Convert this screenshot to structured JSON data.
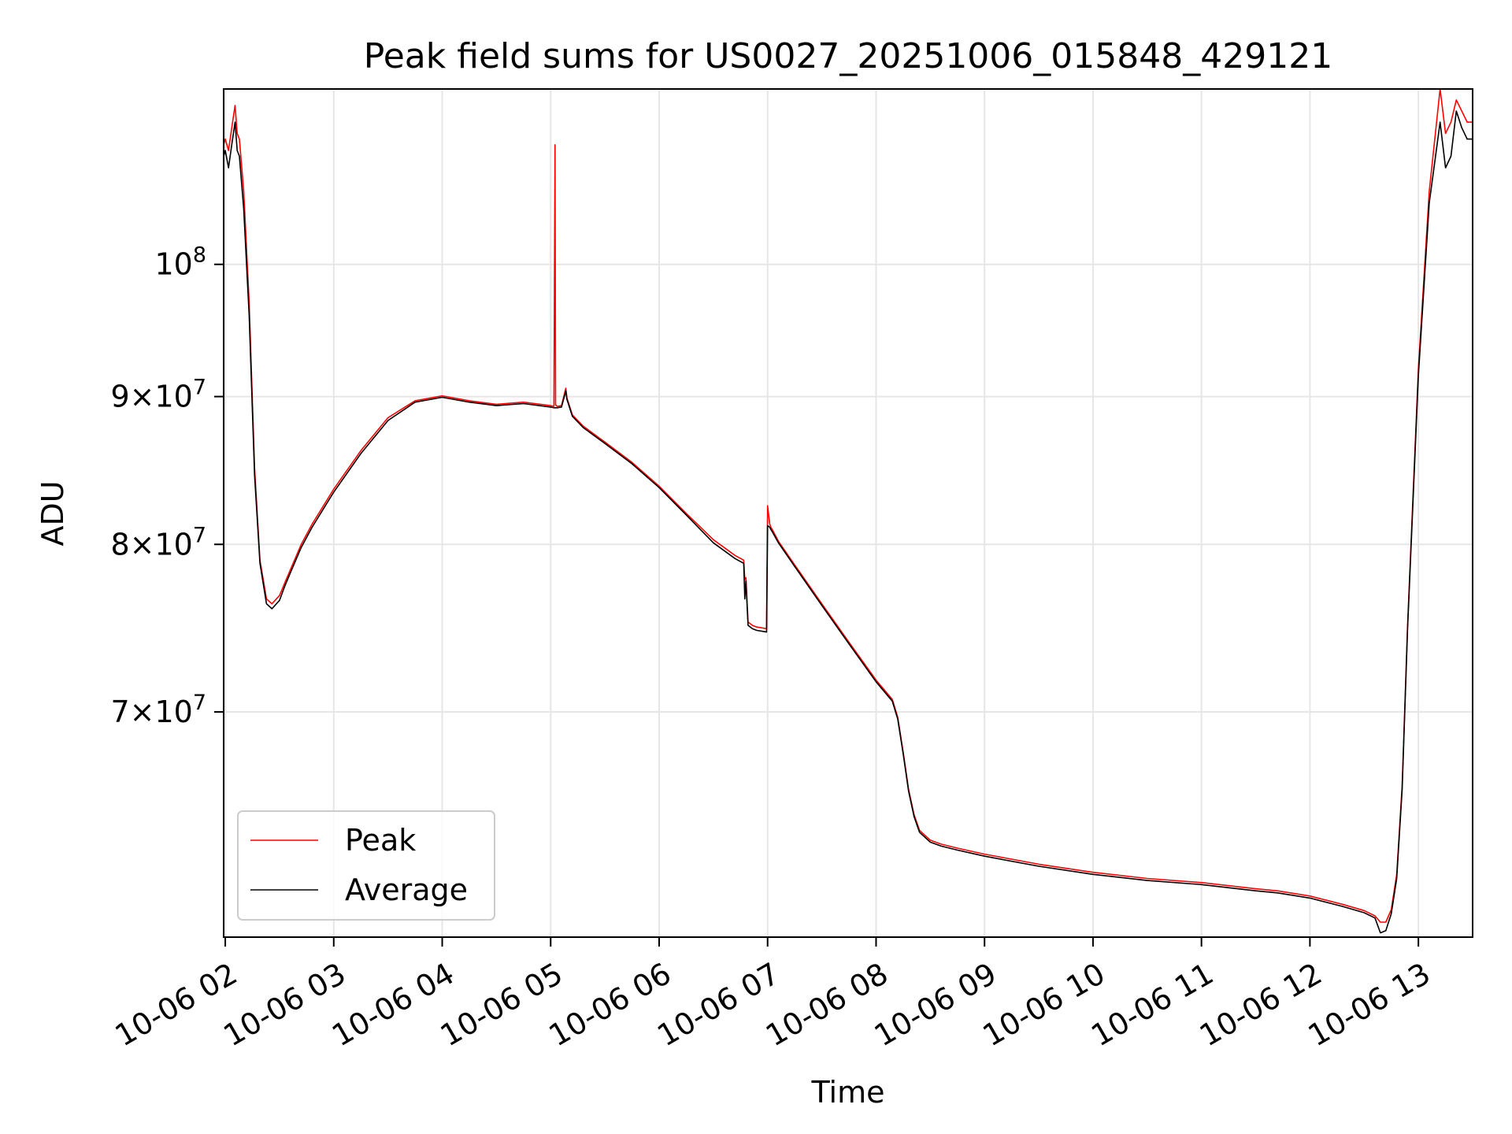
{
  "chart_data": {
    "type": "line",
    "title": "Peak field sums for US0027_20251006_015848_429121",
    "xlabel": "Time",
    "ylabel": "ADU",
    "yscale": "log",
    "grid": true,
    "legend_position": "lower-left",
    "xlim": [
      1.985,
      13.5
    ],
    "ylim": [
      58500000,
      115000000
    ],
    "x_unit": "hours on 2025-10-06",
    "x_ticks": [
      2,
      3,
      4,
      5,
      6,
      7,
      8,
      9,
      10,
      11,
      12,
      13
    ],
    "x_tick_labels": [
      "10-06 02",
      "10-06 03",
      "10-06 04",
      "10-06 05",
      "10-06 06",
      "10-06 07",
      "10-06 08",
      "10-06 09",
      "10-06 10",
      "10-06 11",
      "10-06 12",
      "10-06 13"
    ],
    "y_ticks": [
      70000000,
      80000000,
      90000000,
      100000000
    ],
    "y_tick_labels": [
      {
        "mantissa": "7",
        "times": "×",
        "base": "10",
        "exp": "7"
      },
      {
        "mantissa": "8",
        "times": "×",
        "base": "10",
        "exp": "7"
      },
      {
        "mantissa": "9",
        "times": "×",
        "base": "10",
        "exp": "7"
      },
      {
        "mantissa": "",
        "times": "",
        "base": "10",
        "exp": "8"
      }
    ],
    "series": [
      {
        "name": "Peak",
        "color": "#ff0000",
        "x": [
          1.985,
          2.0,
          2.03,
          2.06,
          2.09,
          2.11,
          2.13,
          2.17,
          2.22,
          2.27,
          2.32,
          2.38,
          2.43,
          2.5,
          2.55,
          2.6,
          2.7,
          2.8,
          3.0,
          3.25,
          3.5,
          3.75,
          4.0,
          4.25,
          4.5,
          4.75,
          5.0,
          5.03,
          5.04,
          5.045,
          5.06,
          5.1,
          5.14,
          5.15,
          5.2,
          5.3,
          5.5,
          5.75,
          6.0,
          6.25,
          6.5,
          6.7,
          6.78,
          6.79,
          6.8,
          6.82,
          6.84,
          6.86,
          6.9,
          6.95,
          6.99,
          7.0,
          7.02,
          7.03,
          7.04,
          7.1,
          7.25,
          7.5,
          7.75,
          8.0,
          8.15,
          8.2,
          8.25,
          8.3,
          8.35,
          8.4,
          8.5,
          8.6,
          8.75,
          9.0,
          9.5,
          10.0,
          10.5,
          11.0,
          11.5,
          11.7,
          12.0,
          12.3,
          12.5,
          12.6,
          12.65,
          12.7,
          12.75,
          12.8,
          12.85,
          12.9,
          13.0,
          13.1,
          13.2,
          13.25,
          13.3,
          13.35,
          13.4,
          13.45,
          13.5
        ],
        "values": [
          110000000,
          110500000,
          109500000,
          111500000,
          113500000,
          111000000,
          110500000,
          106000000,
          97000000,
          85000000,
          79000000,
          76600000,
          76300000,
          76800000,
          77600000,
          78400000,
          80000000,
          81300000,
          83600000,
          86200000,
          88500000,
          89700000,
          90050000,
          89700000,
          89450000,
          89600000,
          89350000,
          89300000,
          110000000,
          89400000,
          89300000,
          89350000,
          90600000,
          89900000,
          88700000,
          87900000,
          86800000,
          85400000,
          83800000,
          82000000,
          80300000,
          79300000,
          79000000,
          77800000,
          77900000,
          75200000,
          75100000,
          75000000,
          74900000,
          74850000,
          74800000,
          82500000,
          81300000,
          81100000,
          81000000,
          80200000,
          78700000,
          76300000,
          74000000,
          71800000,
          70700000,
          69700000,
          67800000,
          65800000,
          64500000,
          63700000,
          63200000,
          63000000,
          62800000,
          62500000,
          62000000,
          61600000,
          61300000,
          61100000,
          60800000,
          60700000,
          60450000,
          60050000,
          59750000,
          59500000,
          59200000,
          59200000,
          59800000,
          61500000,
          66000000,
          75000000,
          92000000,
          106000000,
          115000000,
          111000000,
          112000000,
          114000000,
          113000000,
          112000000,
          112000000
        ]
      },
      {
        "name": "Average",
        "color": "#000000",
        "x": [
          1.985,
          2.0,
          2.03,
          2.06,
          2.09,
          2.11,
          2.13,
          2.17,
          2.22,
          2.27,
          2.32,
          2.38,
          2.43,
          2.5,
          2.55,
          2.6,
          2.7,
          2.8,
          3.0,
          3.25,
          3.5,
          3.75,
          4.0,
          4.25,
          4.5,
          4.75,
          5.0,
          5.03,
          5.06,
          5.1,
          5.14,
          5.15,
          5.2,
          5.3,
          5.5,
          5.75,
          6.0,
          6.25,
          6.5,
          6.7,
          6.78,
          6.79,
          6.8,
          6.82,
          6.84,
          6.86,
          6.9,
          6.95,
          6.99,
          7.0,
          7.02,
          7.03,
          7.04,
          7.1,
          7.25,
          7.5,
          7.75,
          8.0,
          8.15,
          8.2,
          8.25,
          8.3,
          8.35,
          8.4,
          8.5,
          8.6,
          8.75,
          9.0,
          9.5,
          10.0,
          10.5,
          11.0,
          11.5,
          11.7,
          12.0,
          12.3,
          12.5,
          12.6,
          12.65,
          12.7,
          12.75,
          12.8,
          12.85,
          12.9,
          13.0,
          13.1,
          13.2,
          13.25,
          13.3,
          13.35,
          13.4,
          13.45,
          13.5
        ],
        "values": [
          109000000,
          109500000,
          108000000,
          110000000,
          112000000,
          109500000,
          109000000,
          104500000,
          96000000,
          84500000,
          78800000,
          76300000,
          76000000,
          76500000,
          77400000,
          78200000,
          79800000,
          81100000,
          83400000,
          86000000,
          88300000,
          89600000,
          89950000,
          89600000,
          89350000,
          89500000,
          89250000,
          89200000,
          89200000,
          89250000,
          90400000,
          89800000,
          88600000,
          87800000,
          86700000,
          85300000,
          83700000,
          81900000,
          80100000,
          79100000,
          78800000,
          76600000,
          77700000,
          75000000,
          74900000,
          74800000,
          74700000,
          74650000,
          74600000,
          81200000,
          81100000,
          80950000,
          80850000,
          80100000,
          78600000,
          76200000,
          73900000,
          71700000,
          70600000,
          69600000,
          67700000,
          65700000,
          64400000,
          63600000,
          63100000,
          62900000,
          62700000,
          62400000,
          61900000,
          61500000,
          61200000,
          61000000,
          60700000,
          60600000,
          60350000,
          59950000,
          59650000,
          59400000,
          58700000,
          58800000,
          59600000,
          61300000,
          65800000,
          74800000,
          91500000,
          105000000,
          112000000,
          108000000,
          109000000,
          113000000,
          111500000,
          110500000,
          110500000
        ]
      }
    ]
  }
}
